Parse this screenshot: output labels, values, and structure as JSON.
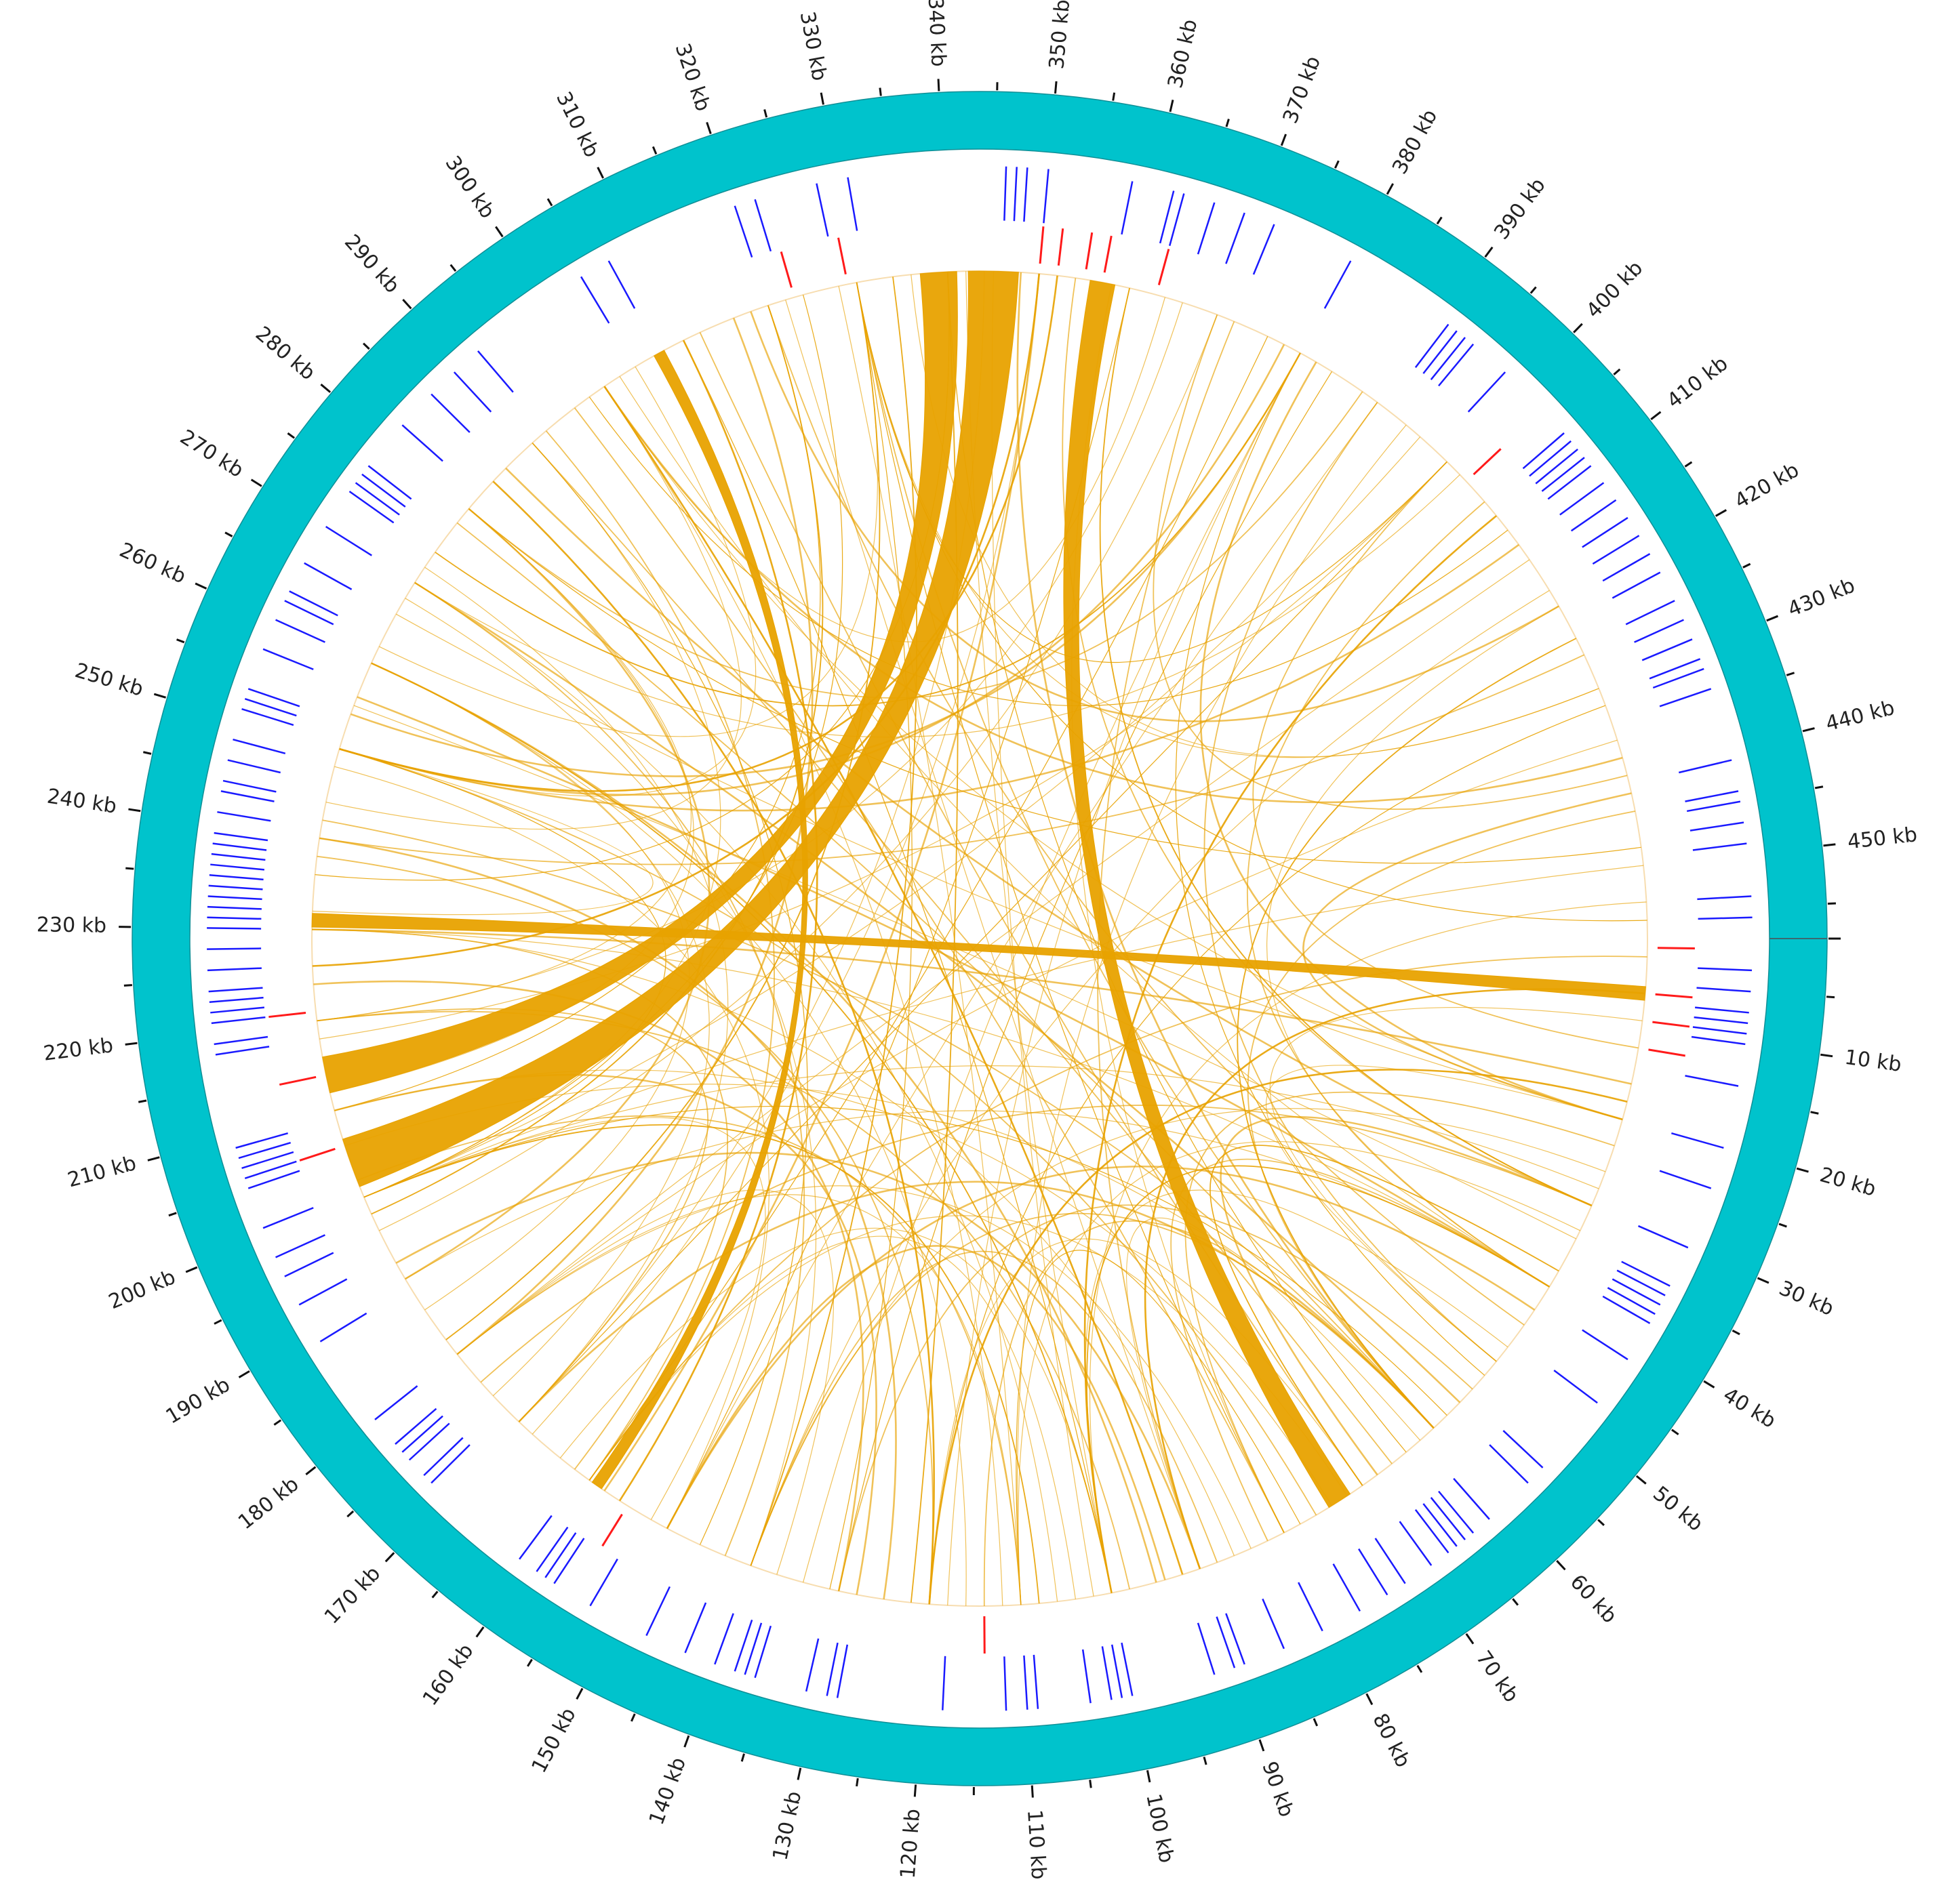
{
  "genome": {
    "total_kb": 458,
    "tick_minor_kb": 5,
    "label_suffix": " kb",
    "tick_labels": [
      "10 kb",
      "20 kb",
      "30 kb",
      "40 kb",
      "50 kb",
      "60 kb",
      "70 kb",
      "80 kb",
      "90 kb",
      "100 kb",
      "110 kb",
      "120 kb",
      "130 kb",
      "140 kb",
      "150 kb",
      "160 kb",
      "170 kb",
      "180 kb",
      "190 kb",
      "200 kb",
      "210 kb",
      "220 kb",
      "230 kb",
      "240 kb",
      "250 kb",
      "260 kb",
      "270 kb",
      "280 kb",
      "290 kb",
      "300 kb",
      "310 kb",
      "320 kb",
      "330 kb",
      "340 kb",
      "350 kb",
      "360 kb",
      "370 kb",
      "380 kb",
      "390 kb",
      "400 kb",
      "410 kb",
      "420 kb",
      "430 kb",
      "440 kb",
      "450 kb"
    ]
  },
  "colors": {
    "outer_ring": "#00c3cc",
    "outer_ring_stroke": "#0f8f96",
    "blue_features": "#1a1aff",
    "red_features": "#ff1a1a",
    "links": "#e8a200",
    "link_frame": "#f7ddb0"
  },
  "features": {
    "blue_kb": [
      3,
      5,
      7,
      8,
      9,
      10,
      14,
      20,
      24,
      30,
      34,
      35,
      36,
      37,
      38,
      42,
      47,
      55,
      57,
      62,
      64,
      65,
      66,
      67,
      69,
      72,
      74,
      77,
      81,
      85,
      89,
      90,
      92,
      100,
      101,
      102,
      104,
      109,
      110,
      112,
      118,
      128,
      129,
      131,
      136,
      137,
      138,
      140,
      143,
      147,
      153,
      157,
      158,
      159,
      161,
      172,
      173,
      175,
      176,
      177,
      180,
      189,
      193,
      196,
      198,
      201,
      205,
      206,
      207,
      208,
      209,
      218,
      219,
      221,
      222,
      223,
      224,
      226,
      228,
      230,
      231,
      232,
      233,
      234,
      235,
      236,
      237,
      238,
      239,
      241,
      243,
      244,
      246,
      248,
      251,
      252,
      253,
      257,
      260,
      262,
      263,
      266,
      270,
      274,
      275,
      276,
      277,
      282,
      286,
      289,
      292,
      304,
      307,
      320,
      322,
      328,
      331,
      346,
      347,
      348,
      350,
      358,
      362,
      363,
      366,
      369,
      372,
      380,
      391,
      392,
      393,
      394,
      398,
      406,
      407,
      408,
      409,
      410,
      412,
      414,
      416,
      418,
      420,
      422,
      425,
      427,
      429,
      431,
      432,
      434,
      441,
      444,
      445,
      447,
      449,
      454,
      456
    ],
    "red_kb": [
      1,
      6,
      9,
      12,
      114,
      155,
      206,
      214,
      221,
      323,
      329,
      350,
      352,
      355,
      357,
      363,
      403
    ]
  },
  "links": {
    "ribbons": [
      {
        "a": 214,
        "b": 339,
        "w": 16
      },
      {
        "a": 204,
        "b": 345,
        "w": 22
      },
      {
        "a": 231,
        "b": 6,
        "w": 6
      },
      {
        "a": 73,
        "b": 357,
        "w": 11
      },
      {
        "a": 307,
        "b": 159,
        "w": 5
      }
    ],
    "curves": [
      [
        6,
        90
      ],
      [
        20,
        300
      ],
      [
        34,
        255
      ],
      [
        45,
        320
      ],
      [
        52,
        380
      ],
      [
        60,
        170
      ],
      [
        66,
        290
      ],
      [
        72,
        210
      ],
      [
        80,
        330
      ],
      [
        88,
        140
      ],
      [
        95,
        260
      ],
      [
        102,
        345
      ],
      [
        108,
        200
      ],
      [
        112,
        300
      ],
      [
        118,
        380
      ],
      [
        125,
        240
      ],
      [
        131,
        330
      ],
      [
        137,
        180
      ],
      [
        143,
        270
      ],
      [
        150,
        390
      ],
      [
        156,
        310
      ],
      [
        162,
        230
      ],
      [
        168,
        350
      ],
      [
        174,
        260
      ],
      [
        182,
        330
      ],
      [
        190,
        280
      ],
      [
        196,
        370
      ],
      [
        202,
        110
      ],
      [
        210,
        320
      ],
      [
        218,
        400
      ],
      [
        224,
        130
      ],
      [
        230,
        40
      ],
      [
        236,
        340
      ],
      [
        242,
        60
      ],
      [
        248,
        150
      ],
      [
        254,
        380
      ],
      [
        260,
        100
      ],
      [
        266,
        20
      ],
      [
        272,
        170
      ],
      [
        278,
        60
      ],
      [
        284,
        120
      ],
      [
        290,
        200
      ],
      [
        296,
        80
      ],
      [
        302,
        40
      ],
      [
        310,
        100
      ],
      [
        316,
        180
      ],
      [
        322,
        90
      ],
      [
        328,
        110
      ],
      [
        334,
        140
      ],
      [
        342,
        100
      ],
      [
        348,
        60
      ],
      [
        354,
        30
      ],
      [
        360,
        150
      ],
      [
        366,
        220
      ],
      [
        372,
        90
      ],
      [
        378,
        250
      ],
      [
        384,
        130
      ],
      [
        390,
        50
      ],
      [
        396,
        200
      ],
      [
        402,
        270
      ],
      [
        408,
        100
      ],
      [
        414,
        180
      ],
      [
        420,
        40
      ],
      [
        426,
        240
      ],
      [
        432,
        120
      ],
      [
        438,
        300
      ],
      [
        444,
        60
      ],
      [
        450,
        200
      ],
      [
        456,
        330
      ],
      [
        12,
        400
      ],
      [
        16,
        230
      ],
      [
        26,
        140
      ],
      [
        30,
        360
      ],
      [
        40,
        190
      ],
      [
        48,
        100
      ],
      [
        56,
        270
      ],
      [
        64,
        340
      ],
      [
        70,
        120
      ],
      [
        76,
        250
      ],
      [
        84,
        180
      ],
      [
        92,
        300
      ],
      [
        98,
        220
      ],
      [
        104,
        160
      ],
      [
        116,
        260
      ],
      [
        122,
        340
      ],
      [
        128,
        210
      ],
      [
        134,
        380
      ],
      [
        140,
        60
      ],
      [
        146,
        290
      ],
      [
        152,
        200
      ],
      [
        158,
        350
      ],
      [
        164,
        100
      ],
      [
        170,
        400
      ],
      [
        176,
        30
      ],
      [
        186,
        260
      ],
      [
        192,
        90
      ],
      [
        198,
        320
      ],
      [
        206,
        60
      ],
      [
        212,
        280
      ],
      [
        220,
        170
      ],
      [
        226,
        350
      ],
      [
        232,
        250
      ],
      [
        238,
        120
      ],
      [
        244,
        300
      ],
      [
        250,
        200
      ],
      [
        256,
        40
      ],
      [
        262,
        330
      ],
      [
        268,
        140
      ],
      [
        274,
        380
      ],
      [
        280,
        220
      ],
      [
        286,
        30
      ],
      [
        292,
        160
      ],
      [
        298,
        410
      ],
      [
        304,
        250
      ],
      [
        312,
        70
      ],
      [
        318,
        420
      ],
      [
        324,
        200
      ],
      [
        330,
        60
      ],
      [
        336,
        430
      ],
      [
        344,
        170
      ],
      [
        352,
        250
      ],
      [
        358,
        80
      ],
      [
        364,
        300
      ],
      [
        370,
        440
      ],
      [
        376,
        160
      ],
      [
        382,
        20
      ],
      [
        388,
        280
      ],
      [
        394,
        110
      ],
      [
        400,
        330
      ],
      [
        406,
        40
      ],
      [
        412,
        250
      ],
      [
        418,
        140
      ],
      [
        424,
        60
      ],
      [
        430,
        330
      ],
      [
        436,
        180
      ],
      [
        442,
        20
      ],
      [
        448,
        280
      ],
      [
        454,
        100
      ],
      [
        2,
        160
      ],
      [
        9,
        50
      ],
      [
        18,
        120
      ],
      [
        23,
        80
      ],
      [
        28,
        200
      ],
      [
        33,
        110
      ],
      [
        38,
        70
      ],
      [
        43,
        150
      ],
      [
        50,
        20
      ],
      [
        54,
        130
      ],
      [
        58,
        200
      ],
      [
        62,
        90
      ],
      [
        68,
        30
      ],
      [
        74,
        160
      ],
      [
        78,
        110
      ],
      [
        82,
        40
      ],
      [
        86,
        230
      ],
      [
        94,
        150
      ],
      [
        100,
        40
      ],
      [
        106,
        270
      ],
      [
        110,
        180
      ],
      [
        114,
        60
      ]
    ]
  }
}
